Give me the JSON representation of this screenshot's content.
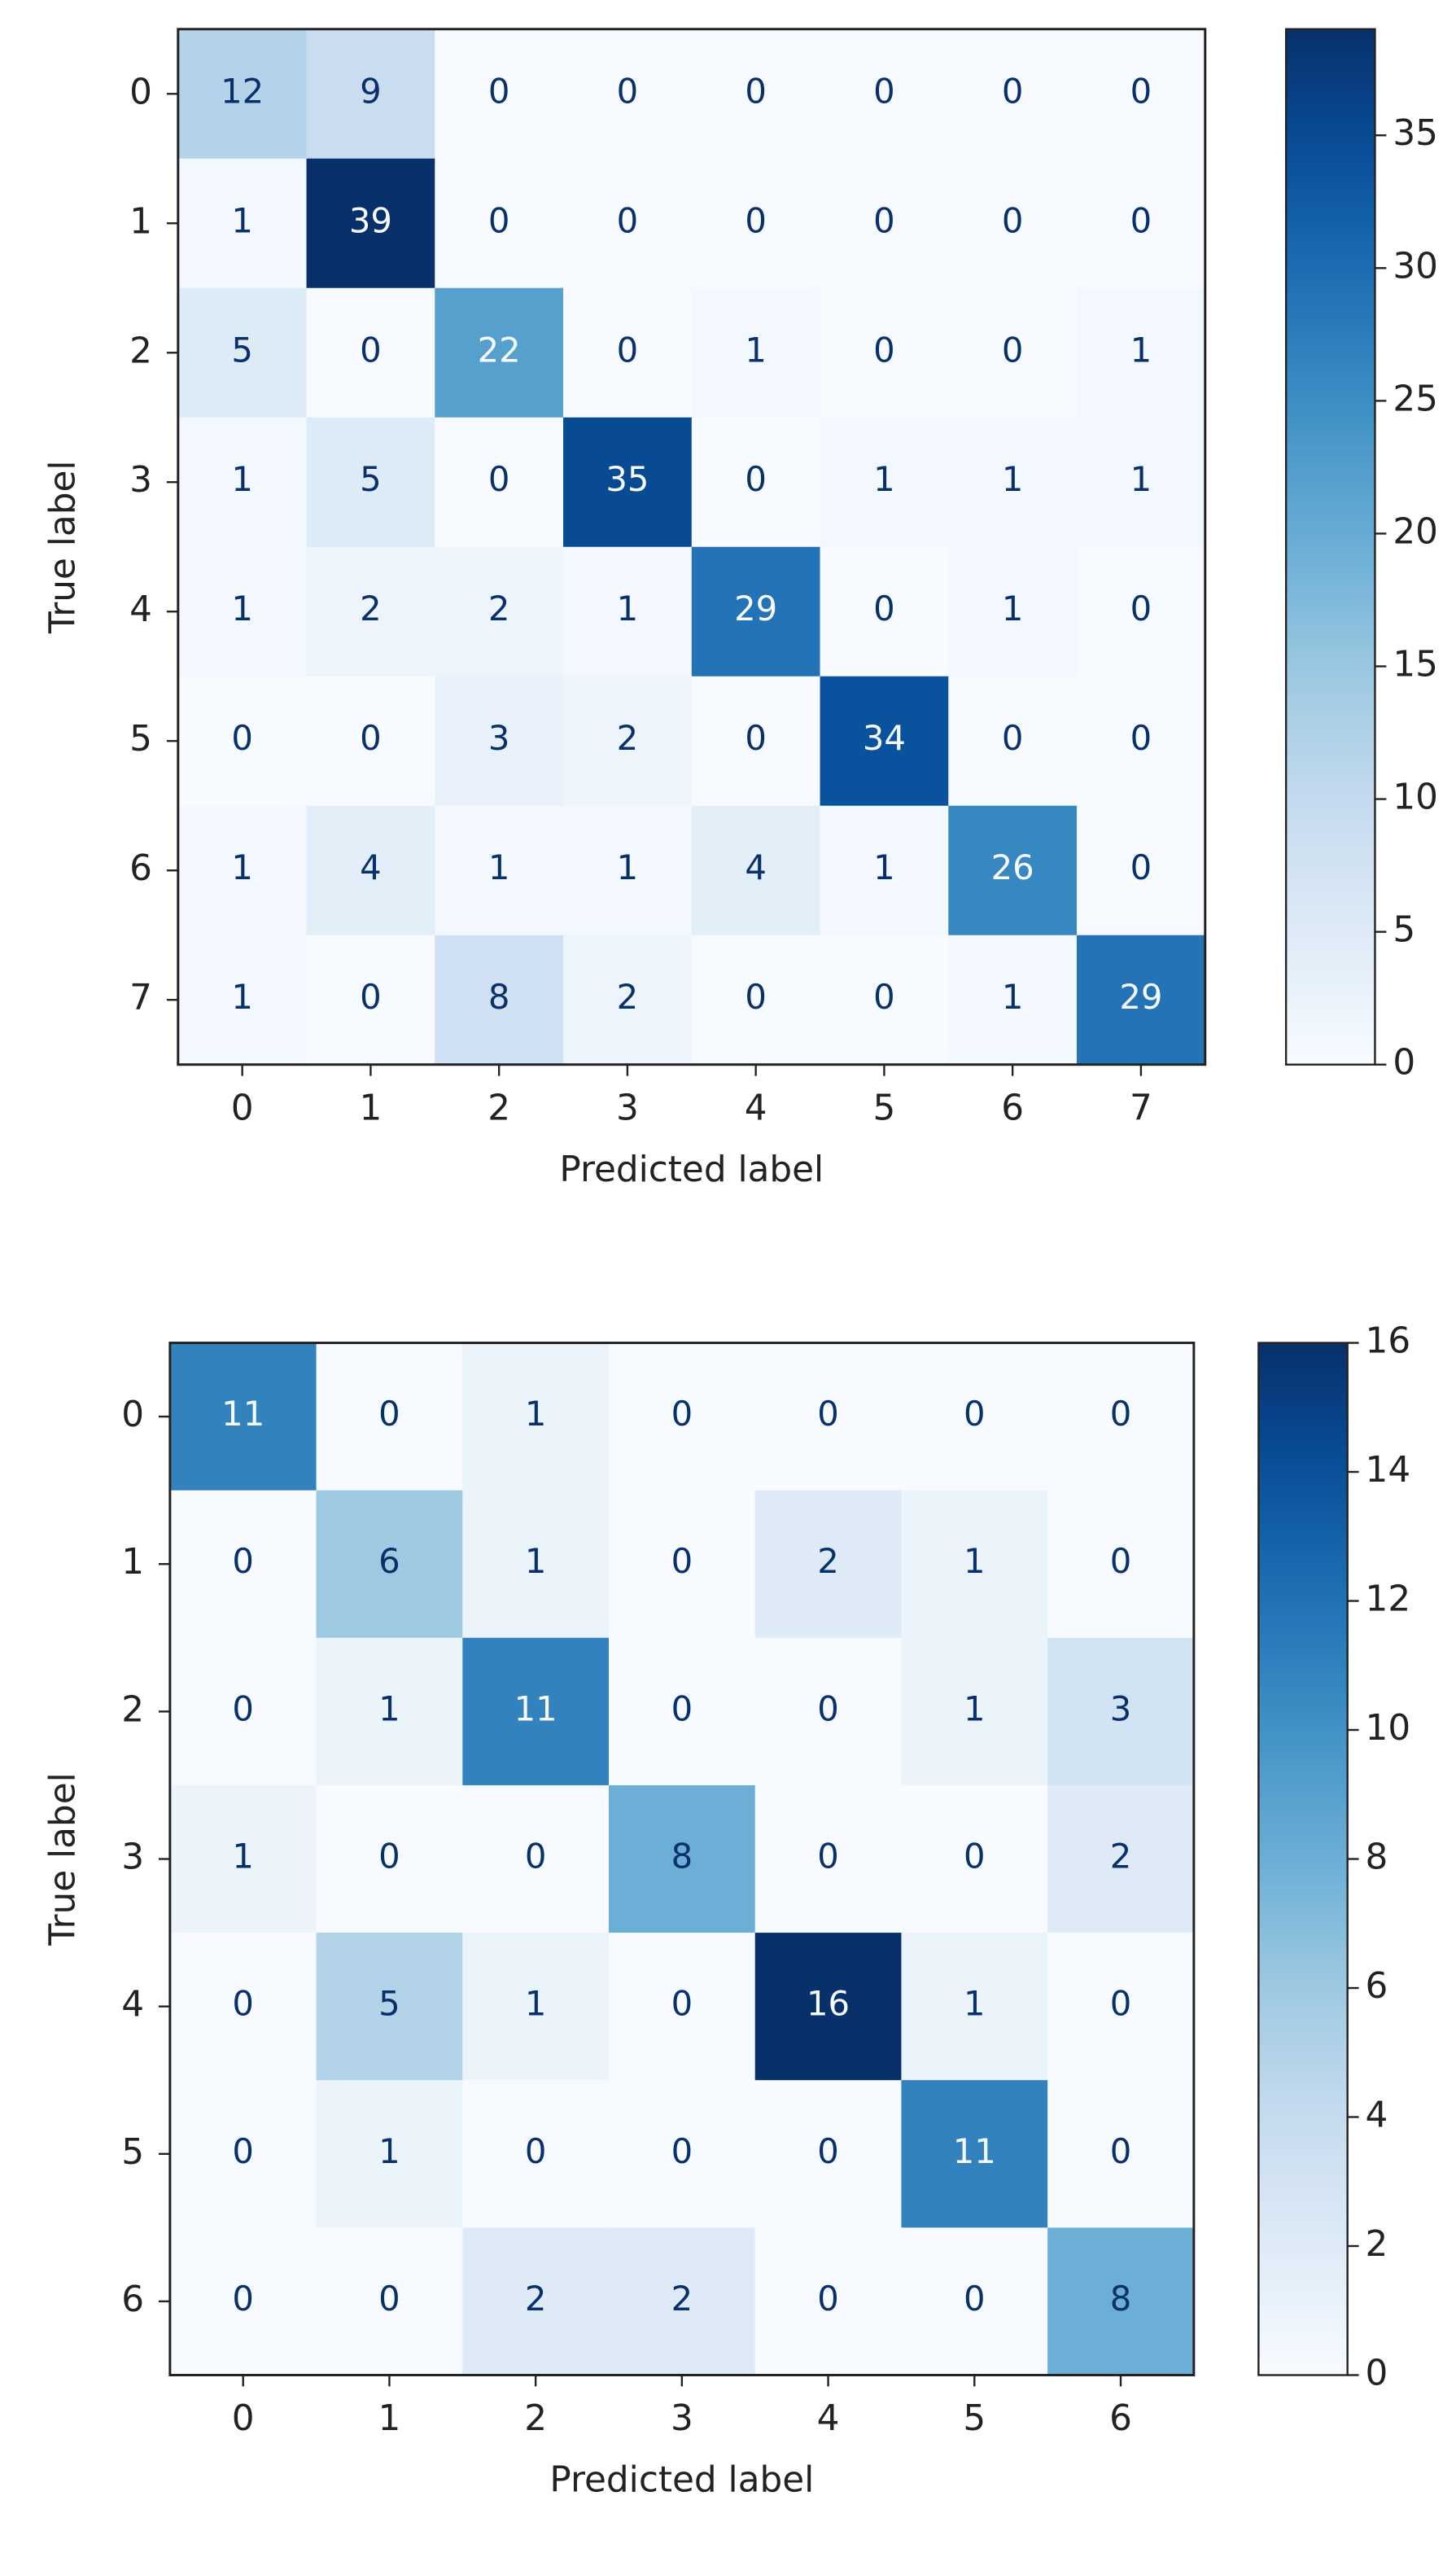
{
  "chart_data": [
    {
      "type": "heatmap",
      "colormap": "Blues",
      "x_label": "Predicted label",
      "y_label": "True label",
      "x_categories": [
        "0",
        "1",
        "2",
        "3",
        "4",
        "5",
        "6",
        "7"
      ],
      "y_categories": [
        "0",
        "1",
        "2",
        "3",
        "4",
        "5",
        "6",
        "7"
      ],
      "values": [
        [
          12,
          9,
          0,
          0,
          0,
          0,
          0,
          0
        ],
        [
          1,
          39,
          0,
          0,
          0,
          0,
          0,
          0
        ],
        [
          5,
          0,
          22,
          0,
          1,
          0,
          0,
          1
        ],
        [
          1,
          5,
          0,
          35,
          0,
          1,
          1,
          1
        ],
        [
          1,
          2,
          2,
          1,
          29,
          0,
          1,
          0
        ],
        [
          0,
          0,
          3,
          2,
          0,
          34,
          0,
          0
        ],
        [
          1,
          4,
          1,
          1,
          4,
          1,
          26,
          0
        ],
        [
          1,
          0,
          8,
          2,
          0,
          0,
          1,
          29
        ]
      ],
      "clim": [
        0,
        39
      ],
      "cticks": [
        0,
        5,
        10,
        15,
        20,
        25,
        30,
        35
      ]
    },
    {
      "type": "heatmap",
      "colormap": "Blues",
      "x_label": "Predicted label",
      "y_label": "True label",
      "x_categories": [
        "0",
        "1",
        "2",
        "3",
        "4",
        "5",
        "6"
      ],
      "y_categories": [
        "0",
        "1",
        "2",
        "3",
        "4",
        "5",
        "6"
      ],
      "values": [
        [
          11,
          0,
          1,
          0,
          0,
          0,
          0
        ],
        [
          0,
          6,
          1,
          0,
          2,
          1,
          0
        ],
        [
          0,
          1,
          11,
          0,
          0,
          1,
          3
        ],
        [
          1,
          0,
          0,
          8,
          0,
          0,
          2
        ],
        [
          0,
          5,
          1,
          0,
          16,
          1,
          0
        ],
        [
          0,
          1,
          0,
          0,
          0,
          11,
          0
        ],
        [
          0,
          0,
          2,
          2,
          0,
          0,
          8
        ]
      ],
      "clim": [
        0,
        16
      ],
      "cticks": [
        0,
        2,
        4,
        6,
        8,
        10,
        12,
        14,
        16
      ]
    }
  ]
}
